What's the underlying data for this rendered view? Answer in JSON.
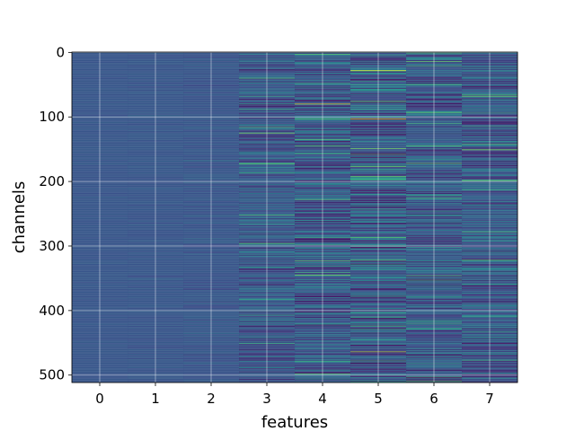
{
  "chart_data": {
    "type": "heatmap",
    "title": "",
    "xlabel": "features",
    "ylabel": "channels",
    "x_ticks": [
      "0",
      "1",
      "2",
      "3",
      "4",
      "5",
      "6",
      "7"
    ],
    "y_ticks": [
      "0",
      "100",
      "200",
      "300",
      "400",
      "500"
    ],
    "x_tick_values": [
      0,
      1,
      2,
      3,
      4,
      5,
      6,
      7
    ],
    "y_tick_values": [
      0,
      100,
      200,
      300,
      400,
      500
    ],
    "xlim": [
      -0.5,
      7.5
    ],
    "ylim": [
      511.5,
      -0.5
    ],
    "n_features": 8,
    "n_channels": 512,
    "grid": true,
    "colormap": "viridis",
    "feature_variation": [
      0.02,
      0.03,
      0.05,
      0.16,
      0.22,
      0.26,
      0.2,
      0.2
    ],
    "highlights": [
      {
        "feature": 4,
        "channel": 80,
        "value": 0.95
      },
      {
        "feature": 5,
        "channel": 103,
        "value": 0.98
      },
      {
        "feature": 5,
        "channel": 28,
        "value": 0.9
      },
      {
        "feature": 7,
        "channel": 68,
        "value": 0.75
      },
      {
        "feature": 4,
        "channel": 157,
        "value": 0.6
      },
      {
        "feature": 3,
        "channel": 80,
        "value": 0.55
      }
    ],
    "colors": {
      "grid": "#ffffff",
      "spine": "#000000"
    }
  }
}
